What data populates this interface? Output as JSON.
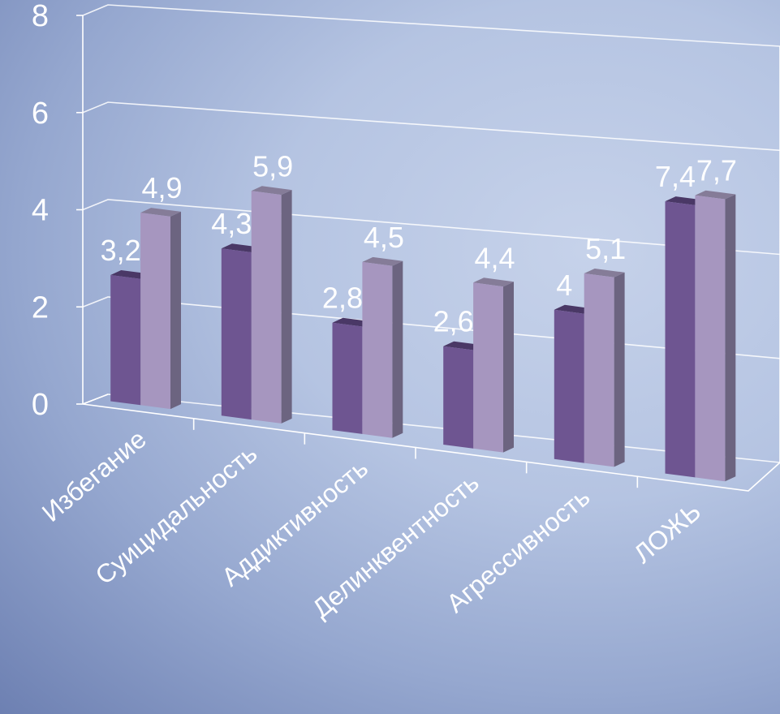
{
  "chart_data": {
    "type": "bar",
    "categories": [
      "Избегание",
      "Суицидальность",
      "Аддиктивность",
      "Делинквентность",
      "Агрессивность",
      "ЛОЖЬ"
    ],
    "series": [
      {
        "values": [
          3.2,
          4.3,
          2.8,
          2.6,
          4,
          7.4
        ],
        "labels": [
          "3,2",
          "4,3",
          "2,8",
          "2,6",
          "4",
          "7,4"
        ],
        "color": "#6e5591"
      },
      {
        "values": [
          4.9,
          5.9,
          4.5,
          4.4,
          5.1,
          7.7
        ],
        "labels": [
          "4,9",
          "5,9",
          "4,5",
          "4,4",
          "5,1",
          "7,7"
        ],
        "color": "#a696bf"
      }
    ],
    "yticks": [
      "0",
      "2",
      "4",
      "6",
      "8"
    ],
    "ylim": [
      0,
      8
    ],
    "grid": true,
    "legend": "none",
    "text_color": "#ffffff"
  }
}
